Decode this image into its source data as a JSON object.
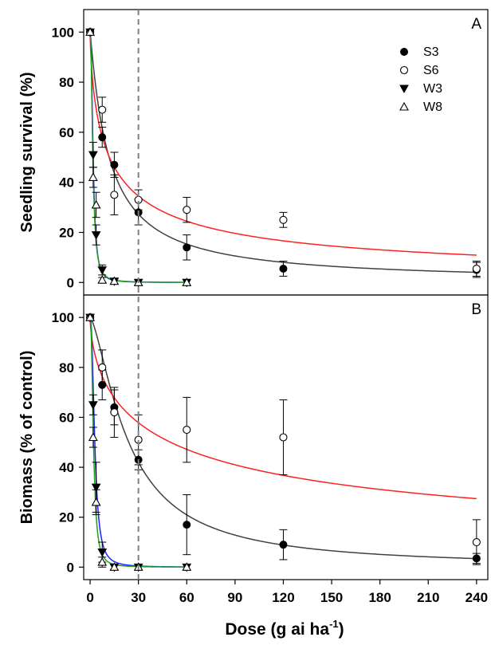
{
  "figure": {
    "x_axis_label_main": "Dose (g ai ha",
    "x_axis_label_sup": "-1",
    "x_axis_label_end": ")",
    "reference_line_dose": 30
  },
  "chart_data": [
    {
      "type": "scatter",
      "panel_letter": "A",
      "ylabel": "Seedling survival (%)",
      "xlim": [
        -4,
        247
      ],
      "ylim": [
        -5,
        109
      ],
      "x_ticks": [
        0,
        30,
        60,
        90,
        120,
        150,
        180,
        210,
        240
      ],
      "y_ticks": [
        0,
        20,
        40,
        60,
        80,
        100
      ],
      "legend_position": "top-right",
      "grid": false,
      "series": [
        {
          "name": "S3",
          "marker": "filled-circle",
          "curve_color": "#404040",
          "x": [
            0,
            7.5,
            15,
            30,
            60,
            120,
            240
          ],
          "y": [
            100,
            58,
            47,
            28,
            14,
            5.5,
            5
          ],
          "err": [
            0,
            4,
            5,
            5,
            5,
            3,
            3
          ],
          "curve": {
            "type": "log-logistic",
            "top": 100,
            "ed50": 11.8,
            "slope": 1.05,
            "xmax": 240
          }
        },
        {
          "name": "S6",
          "marker": "open-circle",
          "curve_color": "#ff2020",
          "x": [
            0,
            7.5,
            15,
            30,
            60,
            120,
            240
          ],
          "y": [
            100,
            69,
            35,
            33,
            29,
            25,
            5.5
          ],
          "err": [
            0,
            5,
            8,
            4,
            5,
            3,
            3
          ],
          "curve": {
            "type": "log-logistic",
            "top": 100,
            "ed50": 12,
            "slope": 0.7,
            "xmax": 240
          }
        },
        {
          "name": "W3",
          "marker": "filled-triangle-down",
          "curve_color": "#2020ff",
          "x": [
            0,
            1.875,
            3.75,
            7.5,
            15,
            30,
            60
          ],
          "y": [
            100,
            51,
            19,
            5,
            0.5,
            0,
            0
          ],
          "err": [
            0,
            5,
            4,
            2,
            1,
            0,
            0
          ],
          "curve": {
            "type": "log-logistic",
            "top": 100,
            "ed50": 1.9,
            "slope": 2.3,
            "xmax": 60
          }
        },
        {
          "name": "W8",
          "marker": "open-triangle-up",
          "curve_color": "#20a020",
          "x": [
            0,
            1.875,
            3.75,
            7.5,
            15,
            30,
            60
          ],
          "y": [
            100,
            42,
            31,
            1,
            0.5,
            0,
            0
          ],
          "err": [
            0,
            4,
            5,
            1,
            1,
            0,
            0
          ],
          "curve": {
            "type": "log-logistic",
            "top": 100,
            "ed50": 1.7,
            "slope": 2.1,
            "xmax": 60
          }
        }
      ]
    },
    {
      "type": "scatter",
      "panel_letter": "B",
      "ylabel": "Biomass (% of control)",
      "xlim": [
        -4,
        247
      ],
      "ylim": [
        -5,
        109
      ],
      "x_ticks": [
        0,
        30,
        60,
        90,
        120,
        150,
        180,
        210,
        240
      ],
      "y_ticks": [
        0,
        20,
        40,
        60,
        80,
        100
      ],
      "tick_labels_x": [
        "0",
        "30",
        "60",
        "90",
        "120",
        "150",
        "180",
        "210",
        "240"
      ],
      "grid": false,
      "series": [
        {
          "name": "S3",
          "marker": "filled-circle",
          "curve_color": "#404040",
          "x": [
            0,
            7.5,
            15,
            30,
            60,
            120,
            240
          ],
          "y": [
            100,
            73,
            64,
            43,
            17,
            9,
            3.5
          ],
          "err": [
            0,
            6,
            7,
            4,
            12,
            6,
            2
          ],
          "curve": {
            "type": "log-logistic",
            "top": 100,
            "ed50": 24,
            "slope": 1.45,
            "xmax": 240
          }
        },
        {
          "name": "S6",
          "marker": "open-circle",
          "curve_color": "#ff2020",
          "x": [
            0,
            7.5,
            15,
            30,
            60,
            120,
            240
          ],
          "y": [
            100,
            80,
            62,
            51,
            55,
            52,
            10
          ],
          "err": [
            0,
            7,
            10,
            10,
            13,
            15,
            9
          ],
          "curve": {
            "type": "log-logistic",
            "top": 100,
            "ed50": 50,
            "slope": 0.62,
            "xmax": 240
          }
        },
        {
          "name": "W3",
          "marker": "filled-triangle-down",
          "curve_color": "#2020ff",
          "x": [
            0,
            1.875,
            3.75,
            7.5,
            15,
            30,
            60
          ],
          "y": [
            100,
            65,
            32,
            6,
            0,
            0,
            0
          ],
          "err": [
            0,
            4,
            10,
            4,
            1,
            0,
            0
          ],
          "curve": {
            "type": "log-logistic",
            "top": 100,
            "ed50": 2.9,
            "slope": 2.3,
            "xmax": 60
          }
        },
        {
          "name": "W8",
          "marker": "open-triangle-up",
          "curve_color": "#20a020",
          "x": [
            0,
            1.875,
            3.75,
            7.5,
            15,
            30,
            60
          ],
          "y": [
            100,
            52,
            26,
            2,
            0,
            0,
            0
          ],
          "err": [
            0,
            4,
            5,
            2,
            1,
            0,
            0
          ],
          "curve": {
            "type": "log-logistic",
            "top": 100,
            "ed50": 2.1,
            "slope": 2.3,
            "xmax": 60
          }
        }
      ]
    }
  ]
}
